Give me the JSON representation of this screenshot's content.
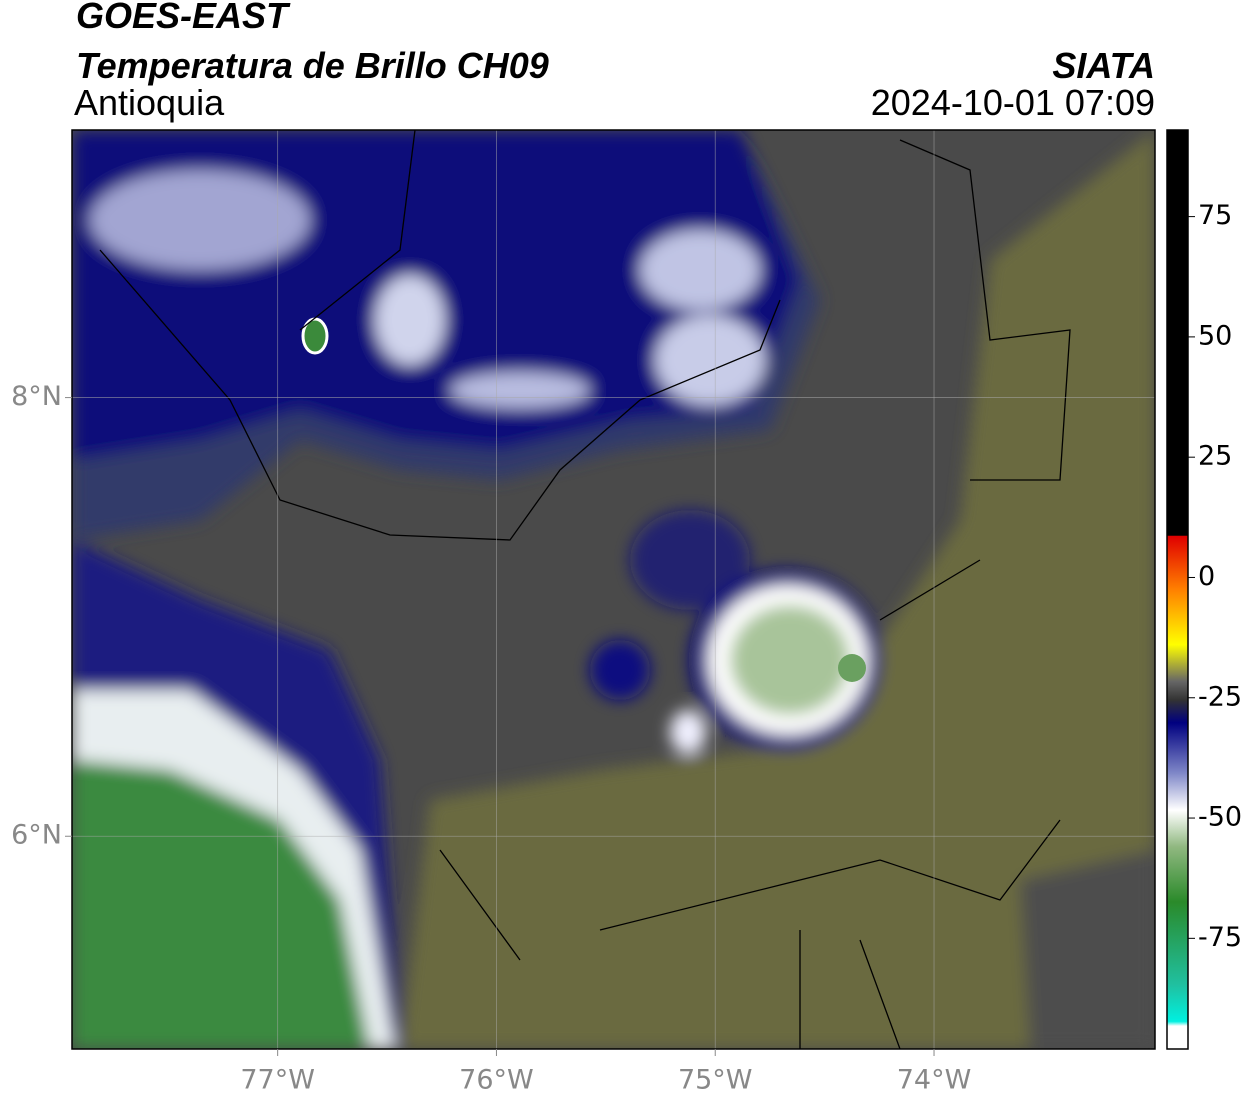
{
  "header": {
    "title": "GOES-EAST",
    "subtitle": "Temperatura de Brillo CH09",
    "region": "Antioquia",
    "source": "SIATA",
    "timestamp": "2024-10-01 07:09"
  },
  "map": {
    "xlim": [
      -77.94,
      -72.99
    ],
    "ylim": [
      5.03,
      9.22
    ],
    "xticks": [
      {
        "value": -77,
        "label": "77°W"
      },
      {
        "value": -76,
        "label": "76°W"
      },
      {
        "value": -75,
        "label": "75°W"
      },
      {
        "value": -74,
        "label": "74°W"
      }
    ],
    "yticks": [
      {
        "value": 8,
        "label": "8°N"
      },
      {
        "value": 6,
        "label": "6°N"
      }
    ],
    "grid": true
  },
  "colorbar": {
    "lim": [
      -98,
      93
    ],
    "ticks": [
      75,
      50,
      25,
      0,
      -25,
      -50,
      -75
    ]
  }
}
